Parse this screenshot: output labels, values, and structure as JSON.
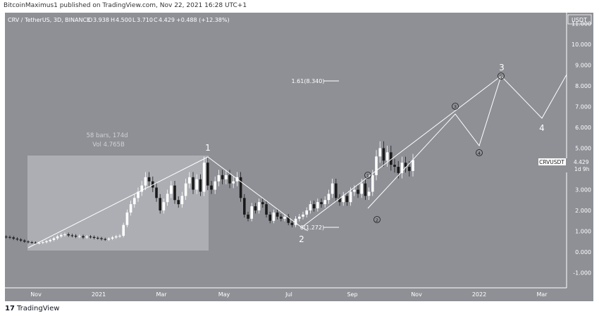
{
  "publish_line": "BitcoinMaximus1 published on TradingView.com, Nov 22, 2021 16:28 UTC+1",
  "footer_logo": "17",
  "footer_brand": "TradingView",
  "colors": {
    "background": "#8e9096",
    "candle": "#ffffff",
    "candle_dark": "#1a1a1a",
    "line": "#ffffff",
    "axis_text": "#ffffff"
  },
  "chart_data": {
    "type": "candlestick",
    "symbol_line": "CRV / TetherUS, 3D, BINANCE",
    "ohlc": {
      "o_label": "O",
      "o": "3.938",
      "h_label": "H",
      "h": "4.500",
      "l_label": "L",
      "l": "3.710",
      "c_label": "C",
      "c": "4.429",
      "change": "+0.488 (+12.38%)"
    },
    "currency": "USDT",
    "price_tag": {
      "symbol": "CRVUSDT",
      "value": "4.429",
      "countdown": "1d 9h"
    },
    "y_ticks": [
      "11.000",
      "10.000",
      "9.000",
      "8.000",
      "7.000",
      "6.000",
      "5.000",
      "4.000",
      "3.000",
      "2.000",
      "1.000",
      "0.000",
      "-1.000"
    ],
    "y_tick_values": [
      11,
      10,
      9,
      8,
      7,
      6,
      5,
      4,
      3,
      2,
      1,
      0,
      -1
    ],
    "x_ticks": [
      "Nov",
      "2021",
      "Mar",
      "May",
      "Jul",
      "Sep",
      "Nov",
      "2022",
      "Mar"
    ],
    "range_box": {
      "bars": "58 bars, 174d",
      "vol": "Vol 4.765B"
    },
    "fib_labels": [
      "1.61(8.340)",
      "0(1.272)"
    ],
    "wave_labels": [
      "1",
      "2",
      "3",
      "4"
    ],
    "sub_wave_labels": [
      "1",
      "2",
      "3",
      "4",
      "5"
    ],
    "closes": [
      0.72,
      0.7,
      0.64,
      0.6,
      0.55,
      0.5,
      0.47,
      0.45,
      0.42,
      0.44,
      0.47,
      0.52,
      0.58,
      0.66,
      0.75,
      0.82,
      0.85,
      0.8,
      0.78,
      0.74,
      0.76,
      0.7,
      0.74,
      0.72,
      0.68,
      0.66,
      0.62,
      0.6,
      0.64,
      0.7,
      0.75,
      0.78,
      1.3,
      1.9,
      2.3,
      2.6,
      2.9,
      3.2,
      3.6,
      3.4,
      3.1,
      2.6,
      2.0,
      2.4,
      2.8,
      3.2,
      2.5,
      2.3,
      2.7,
      3.3,
      3.6,
      3.0,
      3.5,
      2.9,
      4.3,
      3.2,
      3.0,
      3.4,
      3.7,
      3.5,
      3.7,
      3.3,
      3.4,
      3.6,
      2.6,
      1.8,
      1.6,
      2.2,
      2.0,
      2.4,
      2.3,
      1.8,
      1.5,
      1.9,
      1.7,
      1.6,
      1.7,
      1.4,
      1.3,
      1.6,
      1.7,
      1.8,
      2.0,
      2.3,
      2.1,
      2.4,
      2.3,
      2.5,
      2.8,
      3.3,
      2.6,
      2.4,
      2.7,
      2.4,
      2.9,
      3.0,
      2.8,
      3.3,
      2.7,
      2.9,
      3.7,
      4.6,
      5.0,
      4.4,
      4.8,
      4.2,
      4.1,
      3.8,
      4.3,
      4.1,
      3.9,
      4.43
    ]
  }
}
